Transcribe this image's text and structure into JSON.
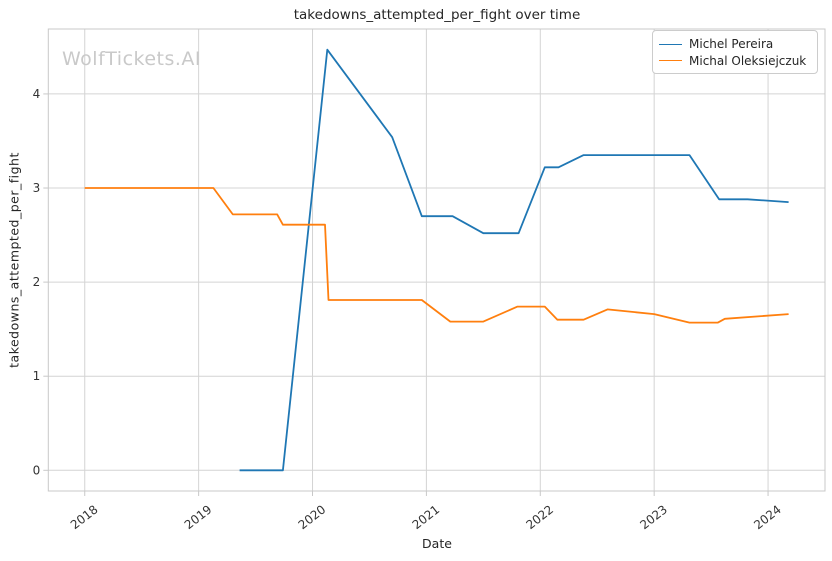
{
  "watermark": "WolfTickets.AI",
  "chart_data": {
    "type": "line",
    "title": "takedowns_attempted_per_fight over time",
    "xlabel": "Date",
    "ylabel": "takedowns_attempted_per_fight",
    "xlim": [
      2017.68,
      2024.5
    ],
    "ylim": [
      -0.22,
      4.69
    ],
    "x_ticks": [
      2018,
      2019,
      2020,
      2021,
      2022,
      2023,
      2024
    ],
    "y_ticks": [
      0,
      1,
      2,
      3,
      4
    ],
    "grid": true,
    "legend_position": "upper right",
    "colors": {
      "grid": "#d4d4d4",
      "spine": "#c8c8c8",
      "tick_text": "#333333",
      "watermark": "#c9c9c9"
    },
    "series": [
      {
        "name": "Michel Pereira",
        "color": "#1f77b4",
        "x": [
          2019.36,
          2019.74,
          2020.13,
          2020.7,
          2020.96,
          2021.23,
          2021.5,
          2021.81,
          2022.04,
          2022.16,
          2022.38,
          2023.31,
          2023.57,
          2023.82,
          2024.18
        ],
        "y": [
          0.0,
          0.0,
          4.47,
          3.54,
          2.7,
          2.7,
          2.52,
          2.52,
          3.22,
          3.22,
          3.35,
          3.35,
          2.88,
          2.88,
          2.85
        ]
      },
      {
        "name": "Michal Oleksiejczuk",
        "color": "#ff7f0e",
        "x": [
          2018.0,
          2019.13,
          2019.3,
          2019.69,
          2019.74,
          2020.11,
          2020.14,
          2020.96,
          2021.21,
          2021.5,
          2021.8,
          2022.04,
          2022.15,
          2022.38,
          2022.59,
          2023.0,
          2023.31,
          2023.56,
          2023.62,
          2024.18
        ],
        "y": [
          3.0,
          3.0,
          2.72,
          2.72,
          2.61,
          2.61,
          1.81,
          1.81,
          1.58,
          1.58,
          1.74,
          1.74,
          1.6,
          1.6,
          1.71,
          1.66,
          1.57,
          1.57,
          1.61,
          1.66
        ]
      }
    ]
  }
}
